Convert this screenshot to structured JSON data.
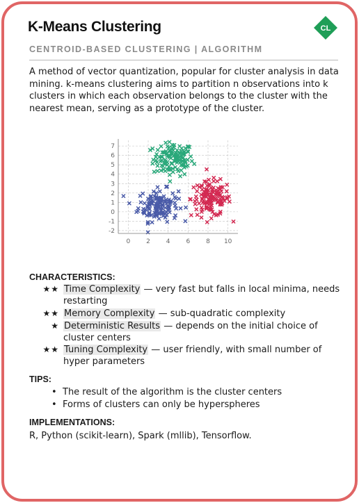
{
  "card": {
    "title": "K-Means Clustering",
    "badge": "CL",
    "subtitle": "CENTROID-BASED CLUSTERING | ALGORITHM",
    "description": "A method of vector quantization, popular for cluster analysis in data mining. k-means clustering aims to partition n observations into k clusters in which each observation belongs to the cluster with the nearest mean, serving as a prototype of the cluster."
  },
  "colors": {
    "border": "#e06565",
    "badge": "#1f9e57",
    "cluster_green": "#2aa87a",
    "cluster_blue": "#4a5ba8",
    "cluster_red": "#d32a52"
  },
  "chart_data": {
    "type": "scatter",
    "marker": "x",
    "xlim": [
      -1,
      11
    ],
    "ylim": [
      -2.3,
      7.6
    ],
    "x_ticks": [
      "0",
      "2",
      "4",
      "6",
      "8",
      "10"
    ],
    "y_ticks": [
      "7",
      "6",
      "5",
      "4",
      "3",
      "2",
      "1",
      "0",
      "-1",
      "-2"
    ],
    "grid": true,
    "series": [
      {
        "color": "#2aa87a",
        "center": [
          4.5,
          5.6
        ],
        "spread": [
          1.0,
          0.9
        ],
        "count": 130
      },
      {
        "color": "#4a5ba8",
        "center": [
          3.0,
          0.7
        ],
        "spread": [
          1.0,
          0.85
        ],
        "count": 140
      },
      {
        "color": "#d32a52",
        "center": [
          8.3,
          1.4
        ],
        "spread": [
          1.0,
          0.95
        ],
        "count": 140
      }
    ]
  },
  "characteristics": {
    "heading": "CHARACTERISTICS:",
    "items": [
      {
        "stars": "★★",
        "term": "Time Complexity",
        "text": " — very fast but falls in local minima, needs restarting"
      },
      {
        "stars": "★★",
        "term": "Memory Complexity",
        "text": " — sub-quadratic complexity"
      },
      {
        "stars": "★",
        "term": "Deterministic Results",
        "text": " — depends on the initial choice of cluster centers"
      },
      {
        "stars": "★★",
        "term": "Tuning Complexity",
        "text": " — user friendly, with small number of hyper parameters"
      }
    ]
  },
  "tips": {
    "heading": "TIPS:",
    "items": [
      "The result of the algorithm is the cluster centers",
      "Forms of clusters can only be hyperspheres"
    ]
  },
  "implementations": {
    "heading": "IMPLEMENTATIONS:",
    "text": "R, Python (scikit-learn), Spark (mllib), Tensorflow."
  }
}
